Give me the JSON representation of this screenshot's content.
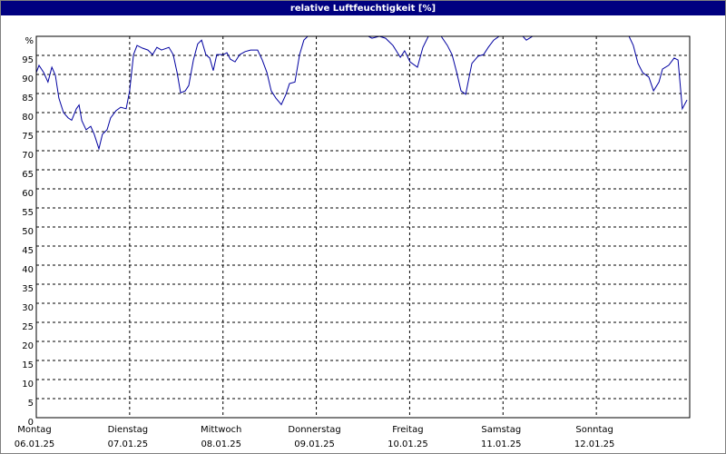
{
  "chart_data": {
    "type": "line",
    "title": "relative Luftfeuchtigkeit [%]",
    "xlim": [
      0,
      168
    ],
    "xticks": [
      {
        "value": 0,
        "label": "Montag",
        "date": "06.01.25"
      },
      {
        "value": 24,
        "label": "Dienstag",
        "date": "07.01.25"
      },
      {
        "value": 48,
        "label": "Mittwoch",
        "date": "08.01.25"
      },
      {
        "value": 72,
        "label": "Donnerstag",
        "date": "09.01.25"
      },
      {
        "value": 96,
        "label": "Freitag",
        "date": "10.01.25"
      },
      {
        "value": 120,
        "label": "Samstag",
        "date": "11.01.25"
      },
      {
        "value": 144,
        "label": "Sonntag",
        "date": "12.01.25"
      }
    ],
    "ylim": [
      0,
      100
    ],
    "yticks": [
      0,
      5,
      10,
      15,
      20,
      25,
      30,
      35,
      40,
      45,
      50,
      55,
      60,
      65,
      70,
      75,
      80,
      85,
      90,
      95,
      {
        "value": 100,
        "label": "%"
      }
    ],
    "grid": true,
    "x": [
      0,
      0.7,
      1.9,
      3.0,
      4.0,
      4.9,
      5.8,
      7.0,
      8.2,
      9.1,
      10.3,
      11.0,
      11.7,
      12.8,
      14.0,
      14.9,
      16.1,
      17.0,
      18.2,
      19.1,
      20.5,
      21.7,
      23.1,
      24.0,
      25.0,
      25.9,
      27.3,
      28.7,
      29.9,
      31.0,
      32.2,
      34.1,
      35.2,
      36.2,
      37.1,
      38.3,
      39.2,
      40.4,
      41.5,
      42.5,
      43.6,
      44.6,
      45.5,
      46.4,
      48.1,
      49.0,
      49.9,
      51.1,
      52.3,
      53.7,
      55.1,
      56.9,
      58.1,
      59.3,
      60.4,
      61.6,
      63.0,
      64.2,
      65.1,
      66.5,
      67.7,
      68.8,
      69.8,
      85.4,
      86.3,
      88.2,
      89.8,
      91.7,
      93.6,
      94.7,
      96.1,
      98.0,
      99.4,
      100.8,
      104.1,
      105.7,
      106.9,
      108.1,
      109.2,
      110.4,
      112.0,
      113.6,
      115.0,
      116.2,
      117.6,
      119.0,
      125.1,
      126.0,
      127.6,
      152.4,
      153.5,
      154.7,
      155.9,
      157.5,
      158.7,
      160.1,
      161.0,
      162.6,
      164.0,
      165.0,
      166.1,
      167.3
    ],
    "series": [
      {
        "name": "relative Luftfeuchtigkeit",
        "color": "#0000a0",
        "values": [
          90.5,
          92.4,
          90.5,
          88,
          91.9,
          89.8,
          83.8,
          80,
          78.6,
          78,
          81,
          82,
          77.9,
          75.5,
          76.4,
          74.3,
          70.5,
          74.3,
          75.5,
          78.6,
          80.5,
          81.4,
          81,
          85.7,
          95.2,
          97.6,
          96.9,
          96.4,
          95.2,
          97.1,
          96.4,
          97.1,
          95.2,
          90.5,
          85.2,
          85.7,
          87.1,
          93.8,
          98,
          99,
          95.2,
          94.3,
          91,
          95.2,
          95.2,
          95.7,
          94,
          93.3,
          95.2,
          96,
          96.4,
          96.4,
          93.8,
          90.5,
          85.7,
          83.8,
          82.1,
          84.8,
          87.6,
          88,
          95.2,
          99,
          100,
          100,
          99.5,
          100,
          99.5,
          97.6,
          94.5,
          96.2,
          93.3,
          91.9,
          97.1,
          100,
          100,
          97.6,
          95.2,
          90.5,
          85.7,
          84.8,
          92.9,
          94.8,
          95.2,
          97.1,
          99,
          100,
          100,
          99,
          100,
          100,
          97.6,
          92.9,
          90.5,
          89.3,
          85.7,
          88,
          91.4,
          92.4,
          94.3,
          93.8,
          81,
          83.3
        ]
      }
    ]
  }
}
